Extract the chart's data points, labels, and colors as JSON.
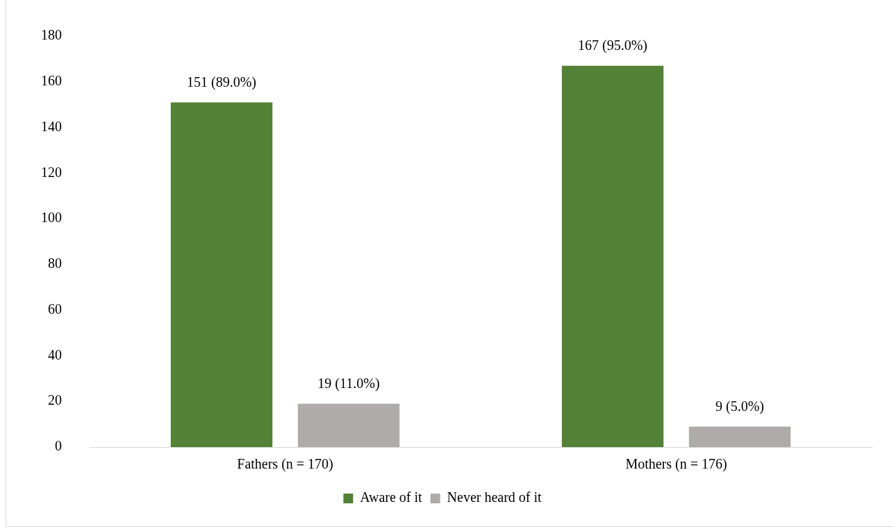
{
  "chart_data": {
    "type": "bar",
    "categories": [
      "Fathers (n = 170)",
      "Mothers (n = 176)"
    ],
    "series": [
      {
        "name": "Aware of it",
        "color": "#538135",
        "values": [
          151,
          167
        ],
        "value_labels": [
          "151 (89.0%)",
          "167 (95.0%)"
        ]
      },
      {
        "name": "Never heard of it",
        "color": "#afabab",
        "values": [
          19,
          9
        ],
        "value_labels": [
          "19 (11.0%)",
          "9 (5.0%)"
        ]
      }
    ],
    "ylim": [
      0,
      180
    ],
    "yticks": [
      0,
      20,
      40,
      60,
      80,
      100,
      120,
      140,
      160,
      180
    ],
    "grid": false,
    "legend": "bottom"
  }
}
